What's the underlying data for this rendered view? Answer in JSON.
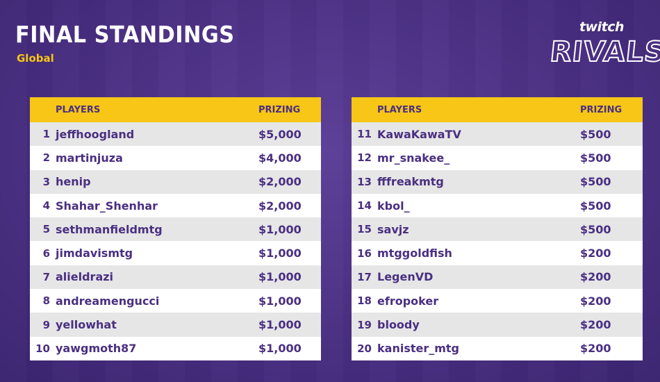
{
  "header": {
    "title": "FINAL STANDINGS",
    "subtitle": "Global"
  },
  "logo": {
    "top": "twitch",
    "bottom": "RIVALS"
  },
  "columns": {
    "players": "PLAYERS",
    "prizing": "PRIZING"
  },
  "colors": {
    "background": "#4a2f82",
    "accent": "#f7c616",
    "text": "#4a2f82"
  },
  "left_table": [
    {
      "rank": "1",
      "name": "jeffhoogland",
      "prize": "$5,000"
    },
    {
      "rank": "2",
      "name": "martinjuza",
      "prize": "$4,000"
    },
    {
      "rank": "3",
      "name": "henip",
      "prize": "$2,000"
    },
    {
      "rank": "4",
      "name": "Shahar_Shenhar",
      "prize": "$2,000"
    },
    {
      "rank": "5",
      "name": "sethmanfieldmtg",
      "prize": "$1,000"
    },
    {
      "rank": "6",
      "name": "jimdavismtg",
      "prize": "$1,000"
    },
    {
      "rank": "7",
      "name": "alieldrazi",
      "prize": "$1,000"
    },
    {
      "rank": "8",
      "name": "andreamengucci",
      "prize": "$1,000"
    },
    {
      "rank": "9",
      "name": "yellowhat",
      "prize": "$1,000"
    },
    {
      "rank": "10",
      "name": "yawgmoth87",
      "prize": "$1,000"
    }
  ],
  "right_table": [
    {
      "rank": "11",
      "name": "KawaKawaTV",
      "prize": "$500"
    },
    {
      "rank": "12",
      "name": "mr_snakee_",
      "prize": "$500"
    },
    {
      "rank": "13",
      "name": "fffreakmtg",
      "prize": "$500"
    },
    {
      "rank": "14",
      "name": "kbol_",
      "prize": "$500"
    },
    {
      "rank": "15",
      "name": "savjz",
      "prize": "$500"
    },
    {
      "rank": "16",
      "name": "mtggoldfish",
      "prize": "$200"
    },
    {
      "rank": "17",
      "name": "LegenVD",
      "prize": "$200"
    },
    {
      "rank": "18",
      "name": "efropoker",
      "prize": "$200"
    },
    {
      "rank": "19",
      "name": "bloody",
      "prize": "$200"
    },
    {
      "rank": "20",
      "name": "kanister_mtg",
      "prize": "$200"
    }
  ]
}
